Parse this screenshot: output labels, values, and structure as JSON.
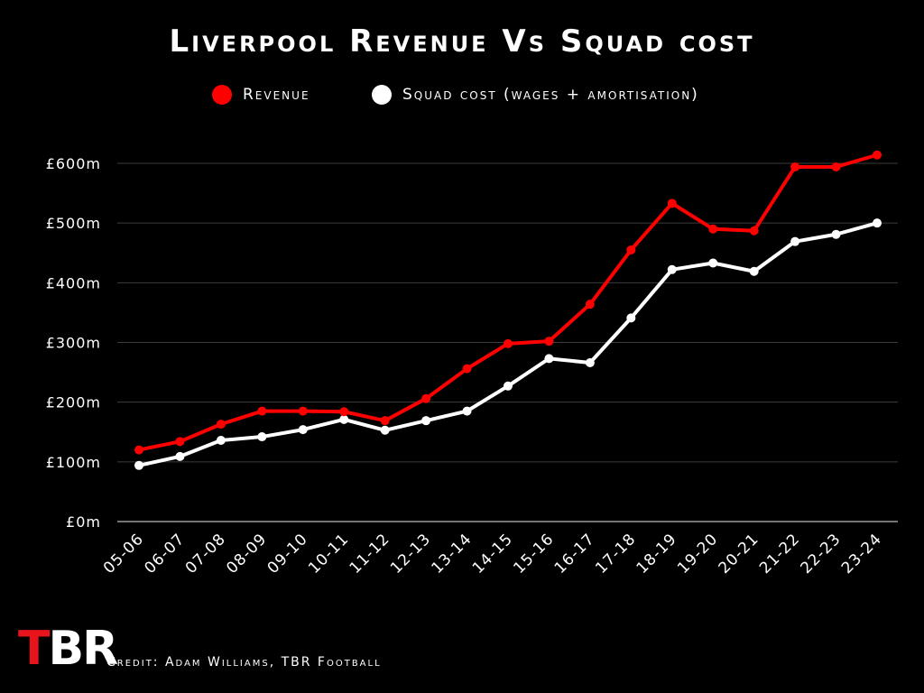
{
  "chart_data": {
    "type": "line",
    "title": "Liverpool Revenue Vs Squad cost",
    "categories": [
      "05-06",
      "06-07",
      "07-08",
      "08-09",
      "09-10",
      "10-11",
      "11-12",
      "12-13",
      "13-14",
      "14-15",
      "15-16",
      "16-17",
      "17-18",
      "18-19",
      "19-20",
      "20-21",
      "21-22",
      "22-23",
      "23-24"
    ],
    "series": [
      {
        "name": "Revenue",
        "color": "#ff0000",
        "values": [
          120,
          134,
          163,
          185,
          185,
          184,
          169,
          206,
          256,
          298,
          302,
          364,
          455,
          533,
          490,
          487,
          594,
          594,
          614
        ]
      },
      {
        "name": "Squad cost (wages + amortisation)",
        "color": "#ffffff",
        "values": [
          94,
          109,
          136,
          142,
          154,
          171,
          153,
          169,
          185,
          227,
          273,
          266,
          341,
          422,
          433,
          419,
          469,
          481,
          500
        ]
      }
    ],
    "y_ticks": [
      "£0m",
      "£100m",
      "£200m",
      "£300m",
      "£400m",
      "£500m",
      "£600m"
    ],
    "ylim": [
      0,
      600
    ],
    "grid": true,
    "legend_position": "top"
  },
  "logo_text": "TBR",
  "credit": "Credit: Adam Williams, TBR Football"
}
